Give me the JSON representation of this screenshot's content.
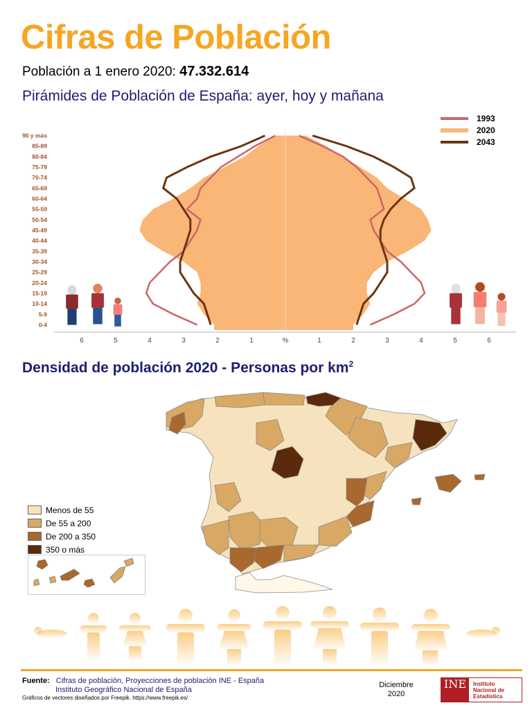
{
  "header": {
    "title": "Cifras de Población",
    "subtitle_label": "Población a 1 enero 2020: ",
    "subtitle_value": "47.332.614"
  },
  "chart_data": [
    {
      "type": "pyramid",
      "title": "Pirámides de Población de España: ayer, hoy y mañana",
      "xlabel": "%",
      "age_groups": [
        "0-4",
        "5-9",
        "10-14",
        "15-19",
        "20-24",
        "25-29",
        "30-34",
        "35-39",
        "40-44",
        "45-49",
        "50-54",
        "55-59",
        "60-64",
        "65-69",
        "70-74",
        "75-79",
        "80-84",
        "85-89",
        "90 y más"
      ],
      "x_ticks_left": [
        "6",
        "5",
        "4",
        "3",
        "2",
        "1"
      ],
      "x_ticks_right": [
        "1",
        "2",
        "3",
        "4",
        "5",
        "6"
      ],
      "xlim": [
        -6.5,
        6.5
      ],
      "series": [
        {
          "name": "1993",
          "color": "#cd6468",
          "male": [
            2.6,
            3.3,
            3.9,
            4.1,
            4.0,
            3.7,
            3.4,
            3.0,
            2.8,
            2.6,
            2.5,
            2.9,
            2.6,
            2.5,
            2.2,
            1.9,
            1.4,
            0.9,
            0.3
          ],
          "female": [
            2.5,
            3.2,
            3.8,
            4.1,
            4.0,
            3.7,
            3.4,
            3.0,
            2.8,
            2.6,
            2.5,
            2.9,
            2.8,
            2.7,
            2.4,
            2.1,
            1.7,
            1.1,
            0.4
          ]
        },
        {
          "name": "2020",
          "color": "#f9b677",
          "male": [
            2.1,
            2.4,
            2.6,
            2.5,
            2.5,
            2.6,
            3.0,
            3.6,
            4.1,
            4.3,
            4.2,
            3.9,
            3.3,
            2.8,
            2.4,
            1.8,
            1.2,
            0.8,
            0.3
          ],
          "female": [
            2.0,
            2.3,
            2.5,
            2.4,
            2.4,
            2.6,
            3.0,
            3.6,
            4.1,
            4.3,
            4.2,
            4.0,
            3.5,
            3.0,
            2.7,
            2.2,
            1.7,
            1.2,
            0.6
          ]
        },
        {
          "name": "2043",
          "color": "#6b3410",
          "male": [
            2.2,
            2.3,
            2.4,
            2.7,
            2.9,
            3.1,
            3.1,
            3.0,
            2.9,
            2.8,
            2.8,
            3.0,
            3.2,
            3.6,
            3.5,
            2.9,
            2.2,
            1.3,
            0.6
          ],
          "female": [
            2.1,
            2.2,
            2.3,
            2.6,
            2.8,
            3.0,
            3.0,
            2.9,
            2.8,
            2.8,
            2.9,
            3.1,
            3.4,
            3.8,
            3.7,
            3.2,
            2.6,
            1.8,
            0.8
          ]
        }
      ]
    },
    {
      "type": "choropleth",
      "title": "Densidad de población 2020 - Personas por km²",
      "legend": [
        {
          "label": "Menos de 55",
          "color": "#f6e2bd"
        },
        {
          "label": "De 55 a 200",
          "color": "#d8a864"
        },
        {
          "label": "De 200 a 350",
          "color": "#a8682e"
        },
        {
          "label": "350 o más",
          "color": "#5a2a0a"
        }
      ]
    }
  ],
  "map_title_main": "Densidad de población 2020 - Personas por km",
  "map_title_sup": "2",
  "footer": {
    "fuente_label": "Fuente:",
    "fuente_line1": "Cifras de población, Proyecciones de población INE - España",
    "fuente_line2": "Instituto Geográfico Nacional de España",
    "freepik": "Gráficos de vectores diseñados por Freepik.  https://www.freepik.es/",
    "fecha_mes": "Diciembre",
    "fecha_anio": "2020",
    "ine_short": "INE",
    "ine_line1": "Instituto",
    "ine_line2": "Nacional de",
    "ine_line3": "Estadística"
  }
}
